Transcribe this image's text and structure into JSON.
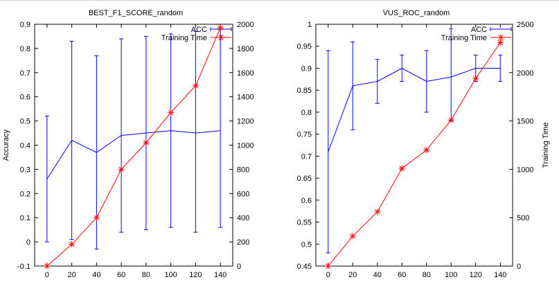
{
  "chart_data": [
    {
      "type": "line",
      "title": "BEST_F1_SCORE_random",
      "ylabel": "Accuracy",
      "y2label": "",
      "xlim": [
        -10,
        150
      ],
      "x_ticks": [
        0,
        20,
        40,
        60,
        80,
        100,
        120,
        140
      ],
      "ylim": [
        -0.1,
        0.9
      ],
      "y_ticks": [
        "-0.1",
        "0",
        "0.1",
        "0.2",
        "0.3",
        "0.4",
        "0.5",
        "0.6",
        "0.7",
        "0.8",
        "0.9"
      ],
      "y2lim": [
        0,
        2000
      ],
      "y2_ticks": [
        "0",
        "200",
        "400",
        "600",
        "800",
        "1000",
        "1200",
        "1400",
        "1600",
        "1800",
        "2000"
      ],
      "grid": false,
      "legend_position": "top-right",
      "series": [
        {
          "name": "ACC",
          "axis": "left",
          "color": "#0000ff",
          "x": [
            0,
            20,
            40,
            60,
            80,
            100,
            120,
            140
          ],
          "values": [
            0.26,
            0.42,
            0.37,
            0.44,
            0.45,
            0.46,
            0.45,
            0.46
          ],
          "err_low": [
            0.0,
            0.01,
            -0.03,
            0.04,
            0.05,
            0.06,
            0.04,
            0.06
          ],
          "err_high": [
            0.52,
            0.83,
            0.77,
            0.84,
            0.85,
            0.86,
            0.87,
            0.88
          ]
        },
        {
          "name": "Training Time",
          "axis": "right",
          "color": "#ff0000",
          "x": [
            0,
            20,
            40,
            60,
            80,
            100,
            120,
            140
          ],
          "values": [
            0,
            180,
            400,
            800,
            1020,
            1270,
            1490,
            1970
          ]
        }
      ]
    },
    {
      "type": "line",
      "title": "VUS_ROC_random",
      "ylabel": "",
      "y2label": "Training Time",
      "xlim": [
        -10,
        150
      ],
      "x_ticks": [
        0,
        20,
        40,
        60,
        80,
        100,
        120,
        140
      ],
      "ylim": [
        0.45,
        1.0
      ],
      "y_ticks": [
        "0.45",
        "0.5",
        "0.55",
        "0.6",
        "0.65",
        "0.7",
        "0.75",
        "0.8",
        "0.85",
        "0.9",
        "0.95",
        "1"
      ],
      "y2lim": [
        0,
        2500
      ],
      "y2_ticks": [
        "0",
        "500",
        "1000",
        "1500",
        "2000",
        "2500"
      ],
      "grid": false,
      "legend_position": "top-right",
      "series": [
        {
          "name": "ACC",
          "axis": "left",
          "color": "#0000ff",
          "x": [
            0,
            20,
            40,
            60,
            80,
            100,
            120,
            140
          ],
          "values": [
            0.71,
            0.86,
            0.87,
            0.9,
            0.87,
            0.88,
            0.9,
            0.9
          ],
          "err_low": [
            0.48,
            0.76,
            0.82,
            0.87,
            0.8,
            0.78,
            0.87,
            0.87
          ],
          "err_high": [
            0.94,
            0.96,
            0.92,
            0.93,
            0.94,
            0.99,
            0.93,
            0.93
          ]
        },
        {
          "name": "Training Time",
          "axis": "right",
          "color": "#ff0000",
          "x": [
            0,
            20,
            40,
            60,
            80,
            100,
            120,
            140
          ],
          "values": [
            0,
            310,
            560,
            1010,
            1200,
            1510,
            1940,
            2310
          ]
        }
      ]
    }
  ]
}
